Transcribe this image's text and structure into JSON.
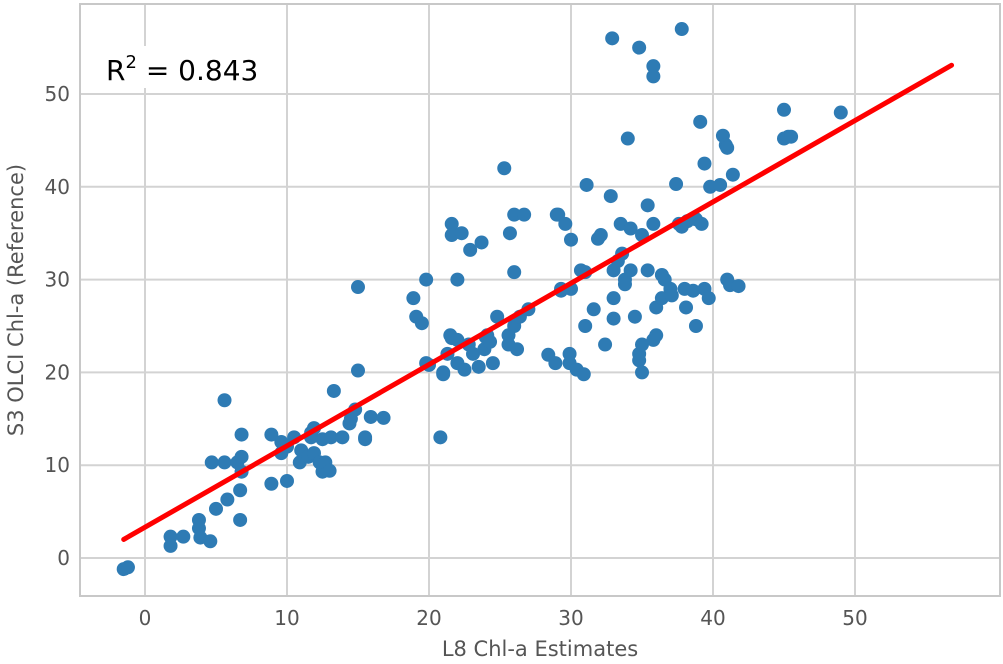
{
  "chart_data": {
    "type": "scatter",
    "xlabel": "L8 Chl-a Estimates",
    "ylabel": "S3 OLCI Chl-a (Reference)",
    "xlim": [
      -4.5,
      60
    ],
    "ylim": [
      -4,
      60
    ],
    "xticks": [
      0,
      10,
      20,
      30,
      40,
      50
    ],
    "yticks": [
      0,
      10,
      20,
      30,
      40,
      50
    ],
    "grid": true,
    "annotation": {
      "prefix": "R",
      "sup": "2",
      "text": " = 0.843"
    },
    "colors": {
      "points": "#2e7bb4",
      "fit_line": "#ff0000",
      "grid": "#d3d3d3",
      "axes": "#c8c8c8",
      "text": "#555555"
    },
    "fit_line": {
      "x": [
        -1.5,
        56.8
      ],
      "y": [
        2.0,
        53.1
      ]
    },
    "points": [
      [
        -1.5,
        -1.2
      ],
      [
        -1.2,
        -1.0
      ],
      [
        1.8,
        2.3
      ],
      [
        1.8,
        1.3
      ],
      [
        2.7,
        2.3
      ],
      [
        3.8,
        4.1
      ],
      [
        3.8,
        3.2
      ],
      [
        3.9,
        2.2
      ],
      [
        4.6,
        1.8
      ],
      [
        4.7,
        10.3
      ],
      [
        5.0,
        5.3
      ],
      [
        5.6,
        17.0
      ],
      [
        5.6,
        10.3
      ],
      [
        5.8,
        6.3
      ],
      [
        6.5,
        10.3
      ],
      [
        6.7,
        4.1
      ],
      [
        6.7,
        7.3
      ],
      [
        6.8,
        9.3
      ],
      [
        6.8,
        10.9
      ],
      [
        6.8,
        13.3
      ],
      [
        8.9,
        13.3
      ],
      [
        8.9,
        8.0
      ],
      [
        9.6,
        11.3
      ],
      [
        9.6,
        12.5
      ],
      [
        10.0,
        12.0
      ],
      [
        10.0,
        8.3
      ],
      [
        10.5,
        13.0
      ],
      [
        10.9,
        10.3
      ],
      [
        11.0,
        11.6
      ],
      [
        11.5,
        10.9
      ],
      [
        11.7,
        13.0
      ],
      [
        11.7,
        13.5
      ],
      [
        11.9,
        14.0
      ],
      [
        11.9,
        11.3
      ],
      [
        12.3,
        10.3
      ],
      [
        12.5,
        12.8
      ],
      [
        12.5,
        9.3
      ],
      [
        12.7,
        10.3
      ],
      [
        13.0,
        9.4
      ],
      [
        13.1,
        13.0
      ],
      [
        13.3,
        18.0
      ],
      [
        13.9,
        13.0
      ],
      [
        14.4,
        14.5
      ],
      [
        14.5,
        15.0
      ],
      [
        14.8,
        16.0
      ],
      [
        15.0,
        29.2
      ],
      [
        15.0,
        20.2
      ],
      [
        15.5,
        13.0
      ],
      [
        15.5,
        12.8
      ],
      [
        15.9,
        15.2
      ],
      [
        16.8,
        15.1
      ],
      [
        18.9,
        28.0
      ],
      [
        19.1,
        26.0
      ],
      [
        19.5,
        25.3
      ],
      [
        19.8,
        30.0
      ],
      [
        19.8,
        21.0
      ],
      [
        20.0,
        20.8
      ],
      [
        20.8,
        13.0
      ],
      [
        21.0,
        20.0
      ],
      [
        21.0,
        19.8
      ],
      [
        21.3,
        22.0
      ],
      [
        21.5,
        24.0
      ],
      [
        21.6,
        36.0
      ],
      [
        21.6,
        34.8
      ],
      [
        21.6,
        23.7
      ],
      [
        22.0,
        30.0
      ],
      [
        22.0,
        23.5
      ],
      [
        22.0,
        21.0
      ],
      [
        22.3,
        35.0
      ],
      [
        22.5,
        20.3
      ],
      [
        22.8,
        23.0
      ],
      [
        22.9,
        33.2
      ],
      [
        23.1,
        22.0
      ],
      [
        23.5,
        20.6
      ],
      [
        23.7,
        34.0
      ],
      [
        23.9,
        22.5
      ],
      [
        24.0,
        23.8
      ],
      [
        24.1,
        24.0
      ],
      [
        24.3,
        23.3
      ],
      [
        24.5,
        21.0
      ],
      [
        24.8,
        26.0
      ],
      [
        25.3,
        42.0
      ],
      [
        25.6,
        24.0
      ],
      [
        25.6,
        23.0
      ],
      [
        25.7,
        35.0
      ],
      [
        26.0,
        37.0
      ],
      [
        26.0,
        30.8
      ],
      [
        26.0,
        25.0
      ],
      [
        26.2,
        22.5
      ],
      [
        26.4,
        26.0
      ],
      [
        26.7,
        37.0
      ],
      [
        27.0,
        26.8
      ],
      [
        28.4,
        21.9
      ],
      [
        28.9,
        21.0
      ],
      [
        29.0,
        37.0
      ],
      [
        29.1,
        37.0
      ],
      [
        29.3,
        28.8
      ],
      [
        29.3,
        29.0
      ],
      [
        29.6,
        36.0
      ],
      [
        29.9,
        22.0
      ],
      [
        29.9,
        21.0
      ],
      [
        30.0,
        34.3
      ],
      [
        30.0,
        29.0
      ],
      [
        30.4,
        20.3
      ],
      [
        30.7,
        31.0
      ],
      [
        30.9,
        19.8
      ],
      [
        31.0,
        30.8
      ],
      [
        31.0,
        25.0
      ],
      [
        31.1,
        40.2
      ],
      [
        31.6,
        26.8
      ],
      [
        31.9,
        34.4
      ],
      [
        32.1,
        34.8
      ],
      [
        32.4,
        23.0
      ],
      [
        32.8,
        39.0
      ],
      [
        32.9,
        56.0
      ],
      [
        33.0,
        25.8
      ],
      [
        33.0,
        28.0
      ],
      [
        33.0,
        31.0
      ],
      [
        33.3,
        32.0
      ],
      [
        33.5,
        36.0
      ],
      [
        33.6,
        32.8
      ],
      [
        33.8,
        30.0
      ],
      [
        33.8,
        29.5
      ],
      [
        34.0,
        45.2
      ],
      [
        34.2,
        35.5
      ],
      [
        34.2,
        31.0
      ],
      [
        34.5,
        26.0
      ],
      [
        34.8,
        55.0
      ],
      [
        34.8,
        22.0
      ],
      [
        34.8,
        21.3
      ],
      [
        35.0,
        34.8
      ],
      [
        35.0,
        23.0
      ],
      [
        35.0,
        20.0
      ],
      [
        35.4,
        31.0
      ],
      [
        35.4,
        38.0
      ],
      [
        35.8,
        36.0
      ],
      [
        35.8,
        51.9
      ],
      [
        35.8,
        53.0
      ],
      [
        35.8,
        23.5
      ],
      [
        36.0,
        24.0
      ],
      [
        36.0,
        27.0
      ],
      [
        36.4,
        28.0
      ],
      [
        36.4,
        30.5
      ],
      [
        36.6,
        30.0
      ],
      [
        37.0,
        29.0
      ],
      [
        37.1,
        28.3
      ],
      [
        37.4,
        40.3
      ],
      [
        37.6,
        36.0
      ],
      [
        37.8,
        57.0
      ],
      [
        37.8,
        35.7
      ],
      [
        38.0,
        29.0
      ],
      [
        38.1,
        27.0
      ],
      [
        38.2,
        36.3
      ],
      [
        38.6,
        28.8
      ],
      [
        38.8,
        25.0
      ],
      [
        38.8,
        36.5
      ],
      [
        39.1,
        47.0
      ],
      [
        39.2,
        36.0
      ],
      [
        39.4,
        42.5
      ],
      [
        39.4,
        29.0
      ],
      [
        39.7,
        28.0
      ],
      [
        39.8,
        40.0
      ],
      [
        40.5,
        40.2
      ],
      [
        40.7,
        45.5
      ],
      [
        40.9,
        44.5
      ],
      [
        41.0,
        44.2
      ],
      [
        41.0,
        30.0
      ],
      [
        41.2,
        29.4
      ],
      [
        41.4,
        41.3
      ],
      [
        41.8,
        29.3
      ],
      [
        45.0,
        48.3
      ],
      [
        45.0,
        45.2
      ],
      [
        45.3,
        45.4
      ],
      [
        45.5,
        45.4
      ],
      [
        49.0,
        48.0
      ]
    ]
  }
}
